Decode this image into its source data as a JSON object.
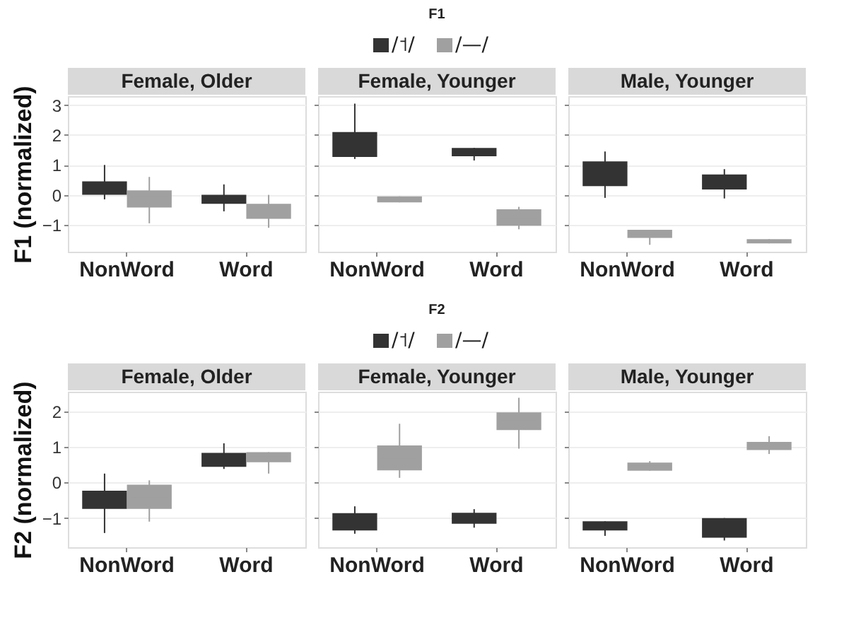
{
  "chart_data": [
    {
      "type": "box",
      "title": "Female, Older",
      "ylabel": "F1 (normalized)",
      "categories": [
        "NonWord",
        "Word"
      ],
      "ylim": [
        -1.9,
        3.3
      ],
      "yticks": [
        -1,
        0,
        1,
        2,
        3
      ],
      "grid": "y",
      "series": [
        {
          "color": "#333333",
          "boxes": [
            {
              "low": -0.15,
              "q1": 0.0,
              "median": 0.2,
              "q3": 0.45,
              "high": 1.0
            },
            {
              "low": -0.55,
              "q1": -0.3,
              "median": -0.15,
              "q3": 0.0,
              "high": 0.35
            }
          ]
        },
        {
          "color": "#a0a0a0",
          "boxes": [
            {
              "low": -0.95,
              "q1": -0.42,
              "median": -0.1,
              "q3": 0.15,
              "high": 0.6
            },
            {
              "low": -1.1,
              "q1": -0.8,
              "median": -0.55,
              "q3": -0.3,
              "high": 0.0
            }
          ]
        }
      ]
    },
    {
      "type": "box",
      "title": "Female, Younger",
      "annotations": [
        "F1"
      ],
      "legend": "top",
      "tick_labels": "x",
      "categories": [
        "NonWord",
        "Word"
      ],
      "ylim": [
        -1.9,
        3.3
      ],
      "yticks": [
        -1,
        0,
        1,
        2,
        3
      ],
      "grid": "y",
      "series": [
        {
          "name": "/˦/",
          "color": "#333333",
          "boxes": [
            {
              "low": 1.2,
              "q1": 1.27,
              "median": 1.7,
              "q3": 2.1,
              "high": 3.05
            },
            {
              "low": 1.15,
              "q1": 1.29,
              "median": 1.43,
              "q3": 1.57,
              "high": 1.57
            }
          ]
        },
        {
          "name": "/—/",
          "color": "#a0a0a0",
          "boxes": [
            {
              "low": -0.25,
              "q1": -0.25,
              "median": -0.15,
              "q3": -0.05,
              "high": -0.05
            },
            {
              "low": -1.15,
              "q1": -1.03,
              "median": -0.75,
              "q3": -0.48,
              "high": -0.4
            }
          ]
        }
      ]
    },
    {
      "type": "box",
      "title": "Male, Younger",
      "tick_labels": "x",
      "categories": [
        "NonWord",
        "Word"
      ],
      "ylim": [
        -1.9,
        3.3
      ],
      "yticks": [
        -1,
        0,
        1,
        2,
        3
      ],
      "grid": "y",
      "series": [
        {
          "color": "#333333",
          "boxes": [
            {
              "low": -0.1,
              "q1": 0.29,
              "median": 0.7,
              "q3": 1.12,
              "high": 1.45
            },
            {
              "low": -0.12,
              "q1": 0.18,
              "median": 0.43,
              "q3": 0.68,
              "high": 0.86
            }
          ]
        },
        {
          "color": "#a0a0a0",
          "boxes": [
            {
              "low": -1.67,
              "q1": -1.44,
              "median": -1.3,
              "q3": -1.17,
              "high": -1.17
            },
            {
              "low": -1.62,
              "q1": -1.62,
              "median": -1.55,
              "q3": -1.48,
              "high": -1.48
            }
          ]
        }
      ]
    },
    {
      "type": "box",
      "title": "Female, Older",
      "ylabel": "F2 (normalized)",
      "categories": [
        "NonWord",
        "Word"
      ],
      "ylim": [
        -1.82,
        2.55
      ],
      "yticks": [
        -1,
        0,
        1,
        2
      ],
      "grid": "y",
      "series": [
        {
          "color": "#333333",
          "boxes": [
            {
              "low": -1.42,
              "q1": -0.74,
              "median": -0.5,
              "q3": -0.23,
              "high": 0.25
            },
            {
              "low": 0.38,
              "q1": 0.44,
              "median": 0.63,
              "q3": 0.83,
              "high": 1.1
            }
          ]
        },
        {
          "color": "#a0a0a0",
          "boxes": [
            {
              "low": -1.1,
              "q1": -0.74,
              "median": -0.4,
              "q3": -0.06,
              "high": 0.06
            },
            {
              "low": 0.25,
              "q1": 0.57,
              "median": 0.71,
              "q3": 0.85,
              "high": 0.85
            }
          ]
        }
      ]
    },
    {
      "type": "box",
      "title": "Female, Younger",
      "annotations": [
        "F2"
      ],
      "legend": "top",
      "tick_labels": "x",
      "categories": [
        "NonWord",
        "Word"
      ],
      "ylim": [
        -1.82,
        2.55
      ],
      "yticks": [
        -1,
        0,
        1,
        2
      ],
      "grid": "y",
      "series": [
        {
          "name": "/˦/",
          "color": "#333333",
          "boxes": [
            {
              "low": -1.44,
              "q1": -1.35,
              "median": -1.1,
              "q3": -0.86,
              "high": -0.67
            },
            {
              "low": -1.27,
              "q1": -1.16,
              "median": -1.0,
              "q3": -0.85,
              "high": -0.75
            }
          ]
        },
        {
          "name": "/—/",
          "color": "#a0a0a0",
          "boxes": [
            {
              "low": 0.13,
              "q1": 0.34,
              "median": 0.7,
              "q3": 1.04,
              "high": 1.65
            },
            {
              "low": 0.95,
              "q1": 1.47,
              "median": 1.72,
              "q3": 1.97,
              "high": 2.38
            }
          ]
        }
      ]
    },
    {
      "type": "box",
      "title": "Male, Younger",
      "tick_labels": "x",
      "categories": [
        "NonWord",
        "Word"
      ],
      "ylim": [
        -1.82,
        2.55
      ],
      "yticks": [
        -1,
        0,
        1,
        2
      ],
      "grid": "y",
      "series": [
        {
          "color": "#333333",
          "boxes": [
            {
              "low": -1.5,
              "q1": -1.35,
              "median": -1.22,
              "q3": -1.09,
              "high": -1.09
            },
            {
              "low": -1.63,
              "q1": -1.55,
              "median": -1.28,
              "q3": -1.0,
              "high": -1.0
            }
          ]
        },
        {
          "color": "#a0a0a0",
          "boxes": [
            {
              "low": 0.33,
              "q1": 0.33,
              "median": 0.45,
              "q3": 0.56,
              "high": 0.6
            },
            {
              "low": 0.8,
              "q1": 0.91,
              "median": 1.02,
              "q3": 1.14,
              "high": 1.3
            }
          ]
        }
      ]
    }
  ]
}
